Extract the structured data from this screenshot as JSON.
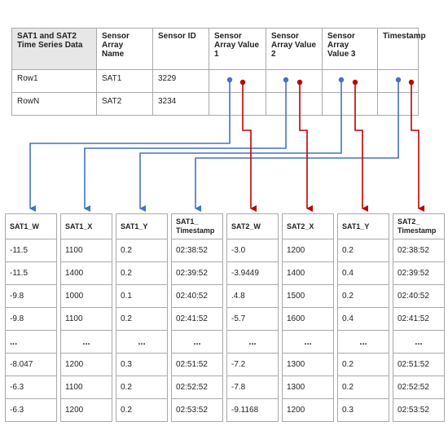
{
  "top_table": {
    "headers": [
      "SAT1 and SAT2 Time Series Data",
      "Sensor Array Name",
      "Sensor ID",
      "Sensor Array Value 1",
      "Sensor Array Value 2",
      "Sensor Array Value 3",
      "Timestamp"
    ],
    "rows": [
      [
        "Row1",
        "SAT1",
        "3229",
        "",
        "",
        "",
        ""
      ],
      [
        "RowN",
        "SAT2",
        "3234",
        "",
        "",
        "",
        ""
      ]
    ]
  },
  "colors": {
    "sat1_arrow": "#4472c4",
    "sat2_arrow": "#c00000",
    "header_fill": "#e7e7e7",
    "border": "#a9a9a9"
  },
  "columns": [
    {
      "header": "SAT1_W",
      "values": [
        "-11.5",
        "-11.5",
        "-9.8",
        "-9.8",
        "...",
        "-8.047",
        "-6.3",
        "-6.3"
      ]
    },
    {
      "header": "SAT1_X",
      "values": [
        "1100",
        "1400",
        "1000",
        "1100",
        "...",
        "1200",
        "1100",
        "1200"
      ]
    },
    {
      "header": "SAT1_Y",
      "values": [
        "0.2",
        "0.2",
        "0.1",
        "0.2",
        "...",
        "0.3",
        "0.2",
        "0.2"
      ]
    },
    {
      "header": "SAT1_ Timestamp",
      "values": [
        "02:38:52",
        "02:39:52",
        "02:40:52",
        "02:41:52",
        "...",
        "02:51:52",
        "02:52:52",
        "02:53:52"
      ]
    },
    {
      "header": "SAT2_W",
      "values": [
        "-3.0",
        "-3.9449",
        ".4.8",
        "-5.7",
        "...",
        "-7.2",
        "-7.8",
        "-9.1168"
      ]
    },
    {
      "header": "SAT2_X",
      "values": [
        "1200",
        "1400",
        "1500",
        "1600",
        "...",
        "1300",
        "1300",
        "1200"
      ]
    },
    {
      "header": "SAT1_Y",
      "values": [
        "0.2",
        "0.4",
        "0.2",
        "0.4",
        "...",
        "0.2",
        "0.2",
        "0.3"
      ]
    },
    {
      "header": "SAT2_ Timestamp",
      "values": [
        "02:38:52",
        "02:39:52",
        "02:40:52",
        "02:41:52",
        "...",
        "02:51:52",
        "02:52:52",
        "02:53:52"
      ]
    }
  ]
}
